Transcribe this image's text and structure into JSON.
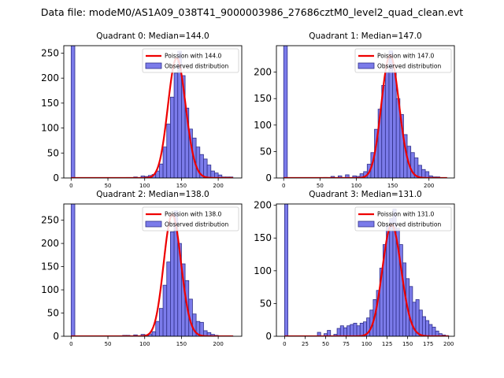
{
  "suptitle": "Data file: modeM0/AS1A09_038T41_9000003986_27686cztM0_level2_quad_clean.evt",
  "colors": {
    "bar_fill": "#7b7bea",
    "bar_edge": "#30308a",
    "fit_line": "#ee0000",
    "axis": "#000000",
    "legend_edge": "#cccccc"
  },
  "chart_data": [
    {
      "type": "bar",
      "title": "Quadrant 0: Median=144.0",
      "legend": [
        "Poission with 144.0",
        "Observed distribution"
      ],
      "legend_position": "upper right",
      "xlim": [
        -10,
        232
      ],
      "ylim": [
        0,
        265
      ],
      "xticks": [
        0,
        50,
        100,
        150,
        200
      ],
      "yticks": [
        0,
        50,
        100,
        150,
        200,
        250
      ],
      "bin_width": 5,
      "zero_bin": {
        "x": 0,
        "count": 265
      },
      "bins": [
        [
          75,
          1
        ],
        [
          85,
          2
        ],
        [
          95,
          4
        ],
        [
          100,
          3
        ],
        [
          105,
          5
        ],
        [
          110,
          7
        ],
        [
          115,
          14
        ],
        [
          120,
          28
        ],
        [
          125,
          62
        ],
        [
          130,
          108
        ],
        [
          135,
          162
        ],
        [
          140,
          210
        ],
        [
          145,
          254
        ],
        [
          150,
          205
        ],
        [
          155,
          140
        ],
        [
          160,
          98
        ],
        [
          165,
          80
        ],
        [
          170,
          62
        ],
        [
          175,
          47
        ],
        [
          180,
          38
        ],
        [
          185,
          26
        ],
        [
          190,
          14
        ],
        [
          195,
          10
        ],
        [
          200,
          6
        ],
        [
          205,
          2
        ],
        [
          210,
          2
        ],
        [
          215,
          2
        ]
      ],
      "poisson_mean": 144.0,
      "poisson_peak": 240,
      "poisson_x_range": [
        0,
        220
      ]
    },
    {
      "type": "bar",
      "title": "Quadrant 1: Median=147.0",
      "legend": [
        "Poission with 147.0",
        "Observed distribution"
      ],
      "legend_position": "upper right",
      "xlim": [
        -10,
        235
      ],
      "ylim": [
        0,
        250
      ],
      "xticks": [
        0,
        50,
        100,
        150,
        200
      ],
      "yticks": [
        0,
        50,
        100,
        150,
        200
      ],
      "bin_width": 5,
      "zero_bin": {
        "x": 0,
        "count": 250
      },
      "bins": [
        [
          55,
          1
        ],
        [
          65,
          3
        ],
        [
          75,
          4
        ],
        [
          85,
          6
        ],
        [
          95,
          4
        ],
        [
          100,
          3
        ],
        [
          105,
          8
        ],
        [
          110,
          12
        ],
        [
          115,
          26
        ],
        [
          120,
          48
        ],
        [
          125,
          92
        ],
        [
          130,
          130
        ],
        [
          135,
          175
        ],
        [
          140,
          200
        ],
        [
          145,
          240
        ],
        [
          150,
          200
        ],
        [
          155,
          150
        ],
        [
          160,
          120
        ],
        [
          165,
          82
        ],
        [
          170,
          60
        ],
        [
          175,
          48
        ],
        [
          180,
          38
        ],
        [
          185,
          24
        ],
        [
          190,
          16
        ],
        [
          195,
          12
        ],
        [
          200,
          4
        ],
        [
          205,
          2
        ],
        [
          210,
          2
        ]
      ],
      "poisson_mean": 147.0,
      "poisson_peak": 232,
      "poisson_x_range": [
        0,
        225
      ]
    },
    {
      "type": "bar",
      "title": "Quadrant 2: Median=138.0",
      "legend": [
        "Poission with 138.0",
        "Observed distribution"
      ],
      "legend_position": "upper right",
      "xlim": [
        -10,
        232
      ],
      "ylim": [
        0,
        285
      ],
      "xticks": [
        0,
        50,
        100,
        150,
        200
      ],
      "yticks": [
        0,
        50,
        100,
        150,
        200,
        250
      ],
      "bin_width": 5,
      "zero_bin": {
        "x": 0,
        "count": 285
      },
      "bins": [
        [
          60,
          1
        ],
        [
          70,
          2
        ],
        [
          75,
          2
        ],
        [
          85,
          3
        ],
        [
          95,
          4
        ],
        [
          100,
          3
        ],
        [
          105,
          5
        ],
        [
          110,
          10
        ],
        [
          115,
          32
        ],
        [
          120,
          60
        ],
        [
          125,
          110
        ],
        [
          130,
          160
        ],
        [
          135,
          225
        ],
        [
          140,
          270
        ],
        [
          145,
          200
        ],
        [
          150,
          156
        ],
        [
          155,
          120
        ],
        [
          160,
          80
        ],
        [
          165,
          48
        ],
        [
          170,
          32
        ],
        [
          175,
          30
        ],
        [
          180,
          12
        ],
        [
          185,
          8
        ],
        [
          190,
          4
        ],
        [
          195,
          2
        ],
        [
          205,
          1
        ],
        [
          215,
          1
        ]
      ],
      "poisson_mean": 138.0,
      "poisson_peak": 262,
      "poisson_x_range": [
        0,
        220
      ]
    },
    {
      "type": "bar",
      "title": "Quadrant 3: Median=131.0",
      "legend": [
        "Poission with 131.0",
        "Observed distribution"
      ],
      "legend_position": "upper right",
      "xlim": [
        -10,
        207
      ],
      "ylim": [
        0,
        202
      ],
      "xticks": [
        0,
        25,
        50,
        75,
        100,
        125,
        150,
        175,
        200
      ],
      "yticks": [
        0,
        50,
        100,
        150,
        200
      ],
      "bin_width": 4,
      "zero_bin": {
        "x": 0,
        "count": 202
      },
      "bins": [
        [
          40,
          6
        ],
        [
          48,
          4
        ],
        [
          52,
          9
        ],
        [
          60,
          3
        ],
        [
          64,
          12
        ],
        [
          68,
          16
        ],
        [
          72,
          13
        ],
        [
          76,
          16
        ],
        [
          80,
          18
        ],
        [
          84,
          20
        ],
        [
          88,
          16
        ],
        [
          92,
          20
        ],
        [
          96,
          22
        ],
        [
          100,
          28
        ],
        [
          104,
          40
        ],
        [
          108,
          56
        ],
        [
          112,
          70
        ],
        [
          116,
          104
        ],
        [
          120,
          140
        ],
        [
          124,
          168
        ],
        [
          128,
          180
        ],
        [
          132,
          194
        ],
        [
          136,
          165
        ],
        [
          140,
          140
        ],
        [
          144,
          112
        ],
        [
          148,
          88
        ],
        [
          152,
          76
        ],
        [
          156,
          52
        ],
        [
          160,
          56
        ],
        [
          164,
          40
        ],
        [
          168,
          30
        ],
        [
          172,
          24
        ],
        [
          176,
          18
        ],
        [
          180,
          14
        ],
        [
          184,
          8
        ],
        [
          188,
          4
        ],
        [
          192,
          2
        ],
        [
          196,
          1
        ]
      ],
      "poisson_mean": 131.0,
      "poisson_peak": 170,
      "poisson_x_range": [
        0,
        200
      ]
    }
  ]
}
